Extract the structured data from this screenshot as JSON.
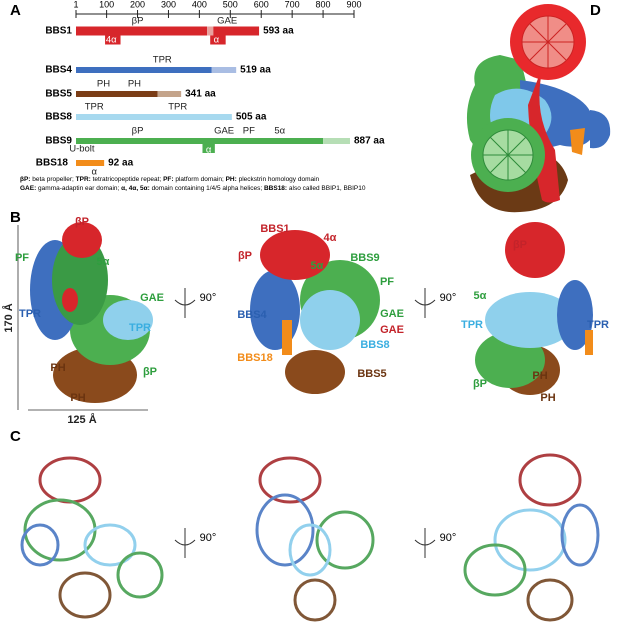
{
  "panels": {
    "a": "A",
    "b": "B",
    "c": "C",
    "d": "D"
  },
  "axis": {
    "range": [
      1,
      900
    ],
    "ticks": [
      1,
      100,
      200,
      300,
      400,
      500,
      600,
      700,
      800,
      900
    ]
  },
  "proteins": [
    {
      "name": "BBS1",
      "length": 593,
      "length_label": "593 aa",
      "domains": [
        "βP",
        "GAE",
        "4α",
        "α"
      ],
      "segments": [
        {
          "start": 1,
          "end": 425,
          "color": "#d7262b"
        },
        {
          "start": 425,
          "end": 445,
          "color": "#e8a3a0"
        },
        {
          "start": 445,
          "end": 593,
          "color": "#d7262b"
        },
        {
          "start": 95,
          "end": 145,
          "color": "#d7262b"
        },
        {
          "start": 435,
          "end": 485,
          "color": "#d7262b"
        }
      ]
    },
    {
      "name": "BBS4",
      "length": 519,
      "length_label": "519 aa",
      "domains": [
        "TPR"
      ],
      "segments": [
        {
          "start": 1,
          "end": 440,
          "color": "#3e6fbf"
        },
        {
          "start": 440,
          "end": 519,
          "color": "#a9bde3"
        }
      ]
    },
    {
      "name": "BBS5",
      "length": 341,
      "length_label": "341 aa",
      "domains": [
        "PH",
        "PH"
      ],
      "segments": [
        {
          "start": 1,
          "end": 265,
          "color": "#7b3d16"
        },
        {
          "start": 265,
          "end": 341,
          "color": "#c4a48b"
        }
      ]
    },
    {
      "name": "BBS8",
      "length": 505,
      "length_label": "505 aa",
      "domains": [
        "TPR",
        "TPR"
      ],
      "segments": [
        {
          "start": 1,
          "end": 505,
          "color": "#a7d9ef"
        }
      ]
    },
    {
      "name": "BBS9",
      "length": 887,
      "length_label": "887 aa",
      "domains": [
        "βP",
        "GAE",
        "PF",
        "5α",
        "α"
      ],
      "segments": [
        {
          "start": 1,
          "end": 800,
          "color": "#4caf50"
        },
        {
          "start": 800,
          "end": 887,
          "color": "#b6deb5"
        },
        {
          "start": 410,
          "end": 450,
          "color": "#4caf50"
        }
      ]
    },
    {
      "name": "BBS18",
      "length": 92,
      "length_label": "92 aa",
      "domains": [
        "U-bolt",
        "α"
      ],
      "segments": [
        {
          "start": 1,
          "end": 92,
          "color": "#f28c1a"
        }
      ]
    }
  ],
  "legend": [
    [
      {
        "key": "βP:",
        "text": " beta propeller; "
      },
      {
        "key": "TPR:",
        "text": " tetratricopeptide repeat; "
      },
      {
        "key": "PF:",
        "text": " platform domain; "
      },
      {
        "key": "PH:",
        "text": " pleckstrin homology domain"
      }
    ],
    [
      {
        "key": "GAE:",
        "text": " gamma-adaptin ear domain; "
      },
      {
        "key": "α, 4α, 5α:",
        "text": " domain containing  1/4/5 alpha helices; "
      },
      {
        "key": "BBS18:",
        "text": " also called BBIP1, BBIP10"
      }
    ]
  ],
  "panel_b": {
    "left": [
      "βP",
      "PF",
      "5α",
      "GAE",
      "TPR",
      "TPR",
      "PH",
      "βP",
      "PH",
      "170 Å",
      "125 Å"
    ],
    "middle": [
      "BBS1",
      "4α",
      "βP",
      "BBS9",
      "5α",
      "PF",
      "BBS4",
      "GAE",
      "GAE",
      "BBS8",
      "BBS18",
      "BBS5"
    ],
    "right": [
      "βP",
      "5α",
      "TPR",
      "TPR",
      "βP",
      "PH",
      "PH"
    ],
    "rotation": [
      "90°",
      "90°"
    ]
  },
  "panel_c": {
    "rotation": [
      "90°",
      "90°"
    ]
  }
}
